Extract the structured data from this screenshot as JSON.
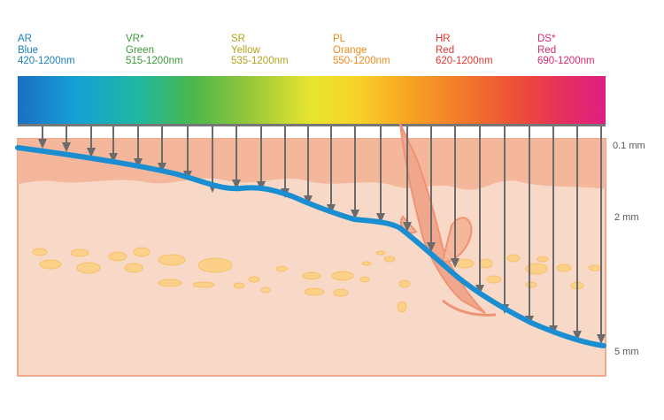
{
  "filters": [
    {
      "code": "AR",
      "color_name": "Blue",
      "range": "420-1200nm",
      "color": "#1a7fc1"
    },
    {
      "code": "VR*",
      "color_name": "Green",
      "range": "515-1200nm",
      "color": "#3a9a3a"
    },
    {
      "code": "SR",
      "color_name": "Yellow",
      "range": "535-1200nm",
      "color": "#b6a21c"
    },
    {
      "code": "PL",
      "color_name": "Orange",
      "range": "550-1200nm",
      "color": "#ee8a1a"
    },
    {
      "code": "HR",
      "color_name": "Red",
      "range": "620-1200nm",
      "color": "#e2372e"
    },
    {
      "code": "DS*",
      "color_name": "Red",
      "range": "690-1200nm",
      "color": "#d92a6e"
    }
  ],
  "depth_scale": [
    {
      "label": "0.1 mm"
    },
    {
      "label": "2 mm"
    },
    {
      "label": "5 mm"
    }
  ],
  "colors": {
    "skin_base": "#f8d9c8",
    "epidermis": "#f4b79c",
    "skin_border": "#f0a98a",
    "fat_cell": "#fbd089",
    "penetration_line": "#1b8ed1",
    "arrow": "#6b6b6b"
  }
}
